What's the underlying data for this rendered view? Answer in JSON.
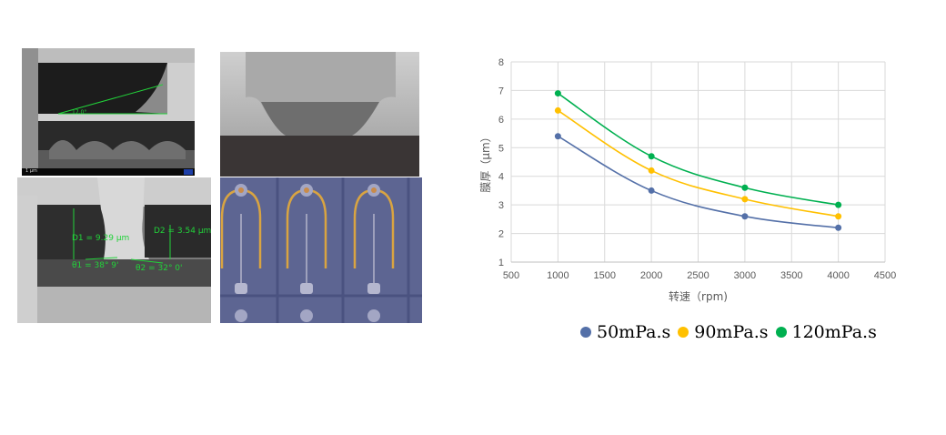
{
  "images": {
    "sem_top_left": {
      "angle_label": "17.0°",
      "infobar": "1 μm"
    },
    "sem_bottom_left": {
      "d1": "D1 = 9.29 μm",
      "d2": "D2 = 3.54 μm",
      "theta1": "θ1 = 38° 9'",
      "theta2": "θ2 = 32° 0'"
    }
  },
  "chart_data": {
    "type": "line",
    "x": [
      1000,
      2000,
      3000,
      4000
    ],
    "series": [
      {
        "name": "50mPa.s",
        "color": "#5470a8",
        "values": [
          5.4,
          3.5,
          2.6,
          2.2
        ]
      },
      {
        "name": "90mPa.s",
        "color": "#ffc000",
        "values": [
          6.3,
          4.2,
          3.2,
          2.6
        ]
      },
      {
        "name": "120mPa.s",
        "color": "#00b050",
        "values": [
          6.9,
          4.7,
          3.6,
          3.0
        ]
      }
    ],
    "xlim": [
      500,
      4500
    ],
    "ylim": [
      1,
      8
    ],
    "xticks": [
      "500",
      "1000",
      "1500",
      "2000",
      "2500",
      "3000",
      "3500",
      "4000",
      "4500"
    ],
    "yticks": [
      "1",
      "2",
      "3",
      "4",
      "5",
      "6",
      "7",
      "8"
    ],
    "xlabel": "转速（rpm)",
    "ylabel": "膜厚（μm）",
    "grid": true,
    "legend_position": "bottom"
  }
}
